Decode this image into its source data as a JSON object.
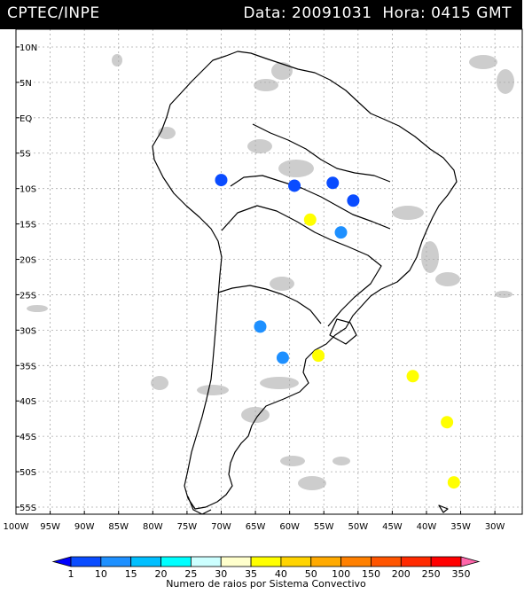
{
  "header": {
    "agency": "CPTEC/INPE",
    "date_text": "Data: 20091031",
    "time_text": "Hora: 0415 GMT"
  },
  "map": {
    "lat_labels": [
      "10N",
      "5N",
      "EQ",
      "5S",
      "10S",
      "15S",
      "20S",
      "25S",
      "30S",
      "35S",
      "40S",
      "45S",
      "50S",
      "55S"
    ],
    "lat_values": [
      10,
      5,
      0,
      -5,
      -10,
      -15,
      -20,
      -25,
      -30,
      -35,
      -40,
      -45,
      -50,
      -55
    ],
    "lon_labels": [
      "100W",
      "95W",
      "90W",
      "85W",
      "80W",
      "75W",
      "70W",
      "65W",
      "60W",
      "55W",
      "50W",
      "45W",
      "40W",
      "35W",
      "30W"
    ],
    "lon_values": [
      -100,
      -95,
      -90,
      -85,
      -80,
      -75,
      -70,
      -65,
      -60,
      -55,
      -50,
      -45,
      -40,
      -35,
      -30
    ],
    "grid": true,
    "cloud_color": "#c8c8c8",
    "land_outline_color": "#000000"
  },
  "lightning": [
    {
      "lon": -70.0,
      "lat": -8.8,
      "bin": "1"
    },
    {
      "lon": -59.3,
      "lat": -9.6,
      "bin": "1"
    },
    {
      "lon": -53.7,
      "lat": -9.2,
      "bin": "1"
    },
    {
      "lon": -50.7,
      "lat": -11.7,
      "bin": "1"
    },
    {
      "lon": -52.5,
      "lat": -16.2,
      "bin": "10"
    },
    {
      "lon": -64.3,
      "lat": -29.5,
      "bin": "10"
    },
    {
      "lon": -61.0,
      "lat": -33.9,
      "bin": "10"
    },
    {
      "lon": -57.0,
      "lat": -14.4,
      "bin": "35"
    },
    {
      "lon": -55.8,
      "lat": -33.6,
      "bin": "35"
    },
    {
      "lon": -42.0,
      "lat": -36.5,
      "bin": "35"
    },
    {
      "lon": -37.0,
      "lat": -43.0,
      "bin": "35"
    },
    {
      "lon": -36.0,
      "lat": -51.5,
      "bin": "35"
    }
  ],
  "legend": {
    "label": "Numero de raios por Sistema Convectivo",
    "values": [
      "1",
      "10",
      "15",
      "20",
      "25",
      "30",
      "35",
      "40",
      "50",
      "100",
      "150",
      "200",
      "250",
      "350"
    ],
    "colors": [
      "#0000ff",
      "#0a4cff",
      "#1e90ff",
      "#00bfff",
      "#00ffff",
      "#ccffff",
      "#ffffcc",
      "#ffff00",
      "#ffd400",
      "#ffaa00",
      "#ff8000",
      "#ff5500",
      "#ff2a00",
      "#ff0000",
      "#ff66aa"
    ]
  }
}
